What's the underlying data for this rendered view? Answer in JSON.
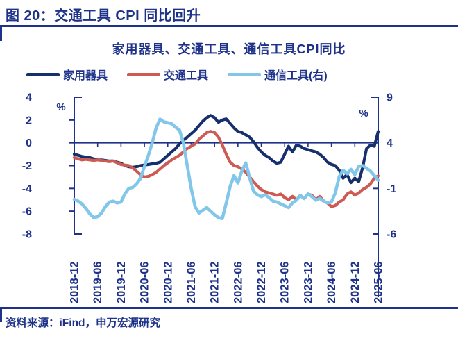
{
  "figure": {
    "title": "图 20：交通工具 CPI 同比回升",
    "source": "资料来源：iFind，申万宏源研究"
  },
  "chart_data": {
    "type": "line",
    "title": "家用器具、交通工具、通信工具CPI同比",
    "x_start": "2018-12",
    "x_end": "2025-06",
    "frequency": "monthly",
    "n_points": 79,
    "x_tick_labels": [
      "2018-12",
      "2019-06",
      "2019-12",
      "2020-06",
      "2020-12",
      "2021-06",
      "2021-12",
      "2022-06",
      "2022-12",
      "2023-06",
      "2023-12",
      "2024-06",
      "2024-12",
      "2025-06"
    ],
    "axes": {
      "left": {
        "unit": "%",
        "range": [
          -8,
          4
        ],
        "ticks": [
          4,
          2,
          0,
          -2,
          -4,
          -6,
          -8
        ]
      },
      "right": {
        "unit": "%",
        "range": [
          -6,
          9
        ],
        "ticks": [
          9,
          4,
          -1,
          -6
        ]
      }
    },
    "grid": "zero-line-only",
    "legend_position": "top",
    "accent_color": "#1d3288",
    "series": [
      {
        "name": "家用器具",
        "axis": "left",
        "color": "#16306e",
        "values": [
          -1.0,
          -1.1,
          -1.2,
          -1.25,
          -1.3,
          -1.4,
          -1.5,
          -1.5,
          -1.55,
          -1.6,
          -1.6,
          -1.7,
          -1.8,
          -2.0,
          -2.1,
          -2.15,
          -2.1,
          -2.0,
          -1.95,
          -1.9,
          -1.85,
          -1.8,
          -1.7,
          -1.4,
          -1.1,
          -0.8,
          -0.5,
          -0.1,
          0.2,
          0.5,
          0.8,
          1.1,
          1.5,
          1.9,
          2.2,
          2.4,
          2.2,
          1.8,
          2.0,
          2.1,
          1.7,
          1.3,
          1.0,
          0.9,
          0.7,
          0.5,
          0.1,
          -0.4,
          -0.8,
          -1.1,
          -1.3,
          -1.6,
          -1.8,
          -1.7,
          -1.0,
          -0.3,
          -0.8,
          -0.2,
          -0.3,
          -0.5,
          -0.6,
          -0.7,
          -0.8,
          -1.0,
          -1.3,
          -1.7,
          -1.9,
          -2.0,
          -2.4,
          -3.1,
          -2.8,
          -3.5,
          -3.1,
          -3.4,
          -2.2,
          -0.5,
          -0.2,
          -0.3,
          1.0
        ]
      },
      {
        "name": "交通工具",
        "axis": "left",
        "color": "#cd5b53",
        "values": [
          -1.3,
          -1.4,
          -1.5,
          -1.45,
          -1.5,
          -1.55,
          -1.5,
          -1.55,
          -1.6,
          -1.65,
          -1.6,
          -1.75,
          -1.9,
          -1.95,
          -2.0,
          -2.2,
          -2.5,
          -2.8,
          -3.0,
          -2.95,
          -2.8,
          -2.6,
          -2.3,
          -2.0,
          -1.75,
          -1.5,
          -1.3,
          -1.1,
          -0.8,
          -0.5,
          -0.3,
          -0.1,
          0.3,
          0.6,
          0.9,
          1.0,
          0.9,
          0.5,
          -0.2,
          -1.0,
          -1.7,
          -2.0,
          -2.1,
          -2.3,
          -2.6,
          -3.0,
          -3.4,
          -3.8,
          -4.1,
          -4.3,
          -4.4,
          -4.5,
          -4.6,
          -4.5,
          -4.8,
          -5.0,
          -4.7,
          -5.0,
          -4.6,
          -4.9,
          -4.5,
          -4.6,
          -5.0,
          -4.7,
          -5.1,
          -5.3,
          -5.6,
          -5.5,
          -5.2,
          -5.0,
          -4.5,
          -4.3,
          -4.6,
          -4.4,
          -4.1,
          -3.9,
          -3.6,
          -3.1,
          -2.9
        ]
      },
      {
        "name": "通信工具(右)",
        "axis": "right",
        "color": "#82c7ea",
        "values": [
          -2.2,
          -2.4,
          -2.7,
          -3.2,
          -3.8,
          -4.2,
          -4.1,
          -3.7,
          -3.0,
          -2.5,
          -2.4,
          -2.6,
          -2.5,
          -1.6,
          -1.0,
          -0.9,
          -0.5,
          0.1,
          1.4,
          2.6,
          4.0,
          5.6,
          6.6,
          6.3,
          6.2,
          6.1,
          5.7,
          5.4,
          4.0,
          1.5,
          -1.0,
          -3.0,
          -3.7,
          -3.4,
          -3.1,
          -3.5,
          -3.9,
          -4.2,
          -4.3,
          -2.6,
          -0.8,
          0.4,
          -0.4,
          0.9,
          1.8,
          0.2,
          -1.3,
          -1.7,
          -1.9,
          -1.7,
          -2.0,
          -2.4,
          -2.5,
          -2.7,
          -2.9,
          -3.1,
          -2.6,
          -2.3,
          -1.8,
          -2.1,
          -1.6,
          -1.9,
          -2.3,
          -2.1,
          -2.4,
          -2.6,
          -2.5,
          -1.5,
          0.3,
          1.0,
          0.6,
          1.1,
          0.5,
          1.4,
          1.5,
          1.2,
          0.9,
          0.4,
          -0.1
        ]
      }
    ]
  }
}
